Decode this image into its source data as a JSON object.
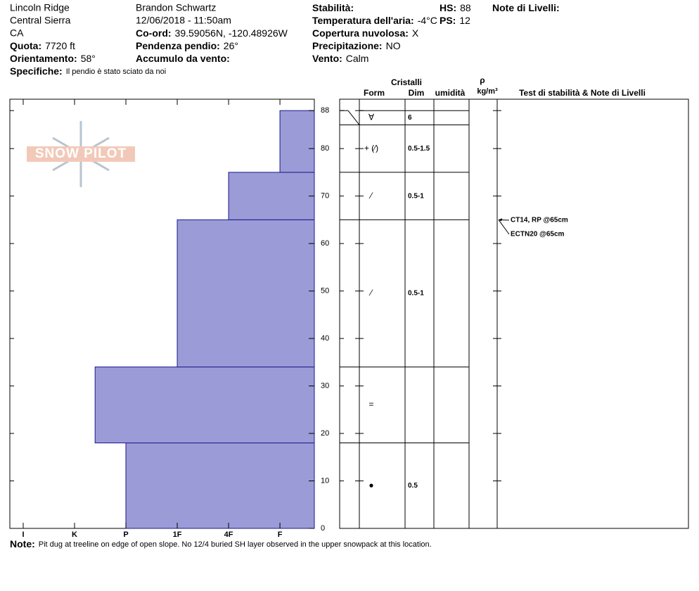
{
  "header": {
    "columns": [
      [
        "Lincoln Ridge",
        "Central Sierra",
        "CA",
        {
          "label": "Quota:",
          "value": "7720 ft"
        },
        {
          "label": "Orientamento:",
          "value": "58°"
        }
      ],
      [
        "Brandon Schwartz",
        "12/06/2018 - 11:50am",
        {
          "label": "Co-ord:",
          "value": "39.59056N, -120.48926W"
        },
        {
          "label": "Pendenza pendio:",
          "value": "26°"
        },
        {
          "label": "Accumulo da vento:",
          "value": ""
        }
      ],
      [
        {
          "label": "Stabilità:",
          "value": ""
        },
        {
          "label": "Temperatura dell'aria:",
          "value": "-4°C"
        },
        {
          "label": "Copertura nuvolosa:",
          "value": "X"
        },
        {
          "label": "Precipitazione:",
          "value": "NO"
        },
        {
          "label": "Vento:",
          "value": "Calm"
        }
      ],
      [
        {
          "label": "HS:",
          "value": "88"
        },
        {
          "label": "PS:",
          "value": "12"
        }
      ],
      [
        {
          "label": "Note di Livelli:",
          "value": ""
        }
      ]
    ],
    "specifiche": {
      "label": "Specifiche:",
      "value": "Il pendio è stato sciato da noi"
    }
  },
  "logo": "SNOW PILOT",
  "chart_data": {
    "type": "hardness-profile",
    "layers": [
      {
        "bottom": 0,
        "top": 18,
        "hardness": 4
      },
      {
        "bottom": 18,
        "top": 34,
        "hardness": 4.6
      },
      {
        "bottom": 34,
        "top": 65,
        "hardness": 3
      },
      {
        "bottom": 65,
        "top": 75,
        "hardness": 2
      },
      {
        "bottom": 75,
        "top": 88,
        "hardness": 1
      }
    ],
    "color": "#9b9bd7",
    "ylim": [
      0,
      90.4
    ],
    "yticks": [
      0,
      10,
      20,
      30,
      40,
      50,
      60,
      70,
      80,
      88
    ],
    "xlim": [
      0.33,
      6.26
    ],
    "xticks": [
      {
        "value": 6,
        "label": "I"
      },
      {
        "value": 5,
        "label": "K"
      },
      {
        "value": 4,
        "label": "P"
      },
      {
        "value": 3,
        "label": "1F"
      },
      {
        "value": 2,
        "label": "4F"
      },
      {
        "value": 1,
        "label": "F"
      }
    ]
  },
  "table": {
    "group": "Cristalli",
    "headers": [
      "Form",
      "Dim",
      "umidità",
      "ρ",
      "kg/m³",
      "Test di stabilità & Note di Livelli"
    ],
    "rows": [
      {
        "top": 88,
        "bottom": 85,
        "form": "∀",
        "size": "6"
      },
      {
        "top": 85,
        "bottom": 75,
        "form": "+ (⁄)",
        "size": "0.5-1.5"
      },
      {
        "top": 75,
        "bottom": 65,
        "form": "⁄",
        "size": "0.5-1"
      },
      {
        "top": 65,
        "bottom": 34,
        "form": "⁄",
        "size": "0.5-1"
      },
      {
        "top": 34,
        "bottom": 18,
        "form": "=",
        "size": ""
      },
      {
        "top": 18,
        "bottom": 0,
        "form": "●",
        "size": "0.5"
      }
    ],
    "tests": [
      {
        "label": "CT14, RP @65cm",
        "depth": 65
      },
      {
        "label": "ECTN20 @65cm",
        "depth": 65
      }
    ]
  },
  "note": {
    "label": "Note:",
    "value": "Pit dug at treeline on edge of open slope. No 12/4 buried SH layer observed in the upper snowpack at this location."
  }
}
